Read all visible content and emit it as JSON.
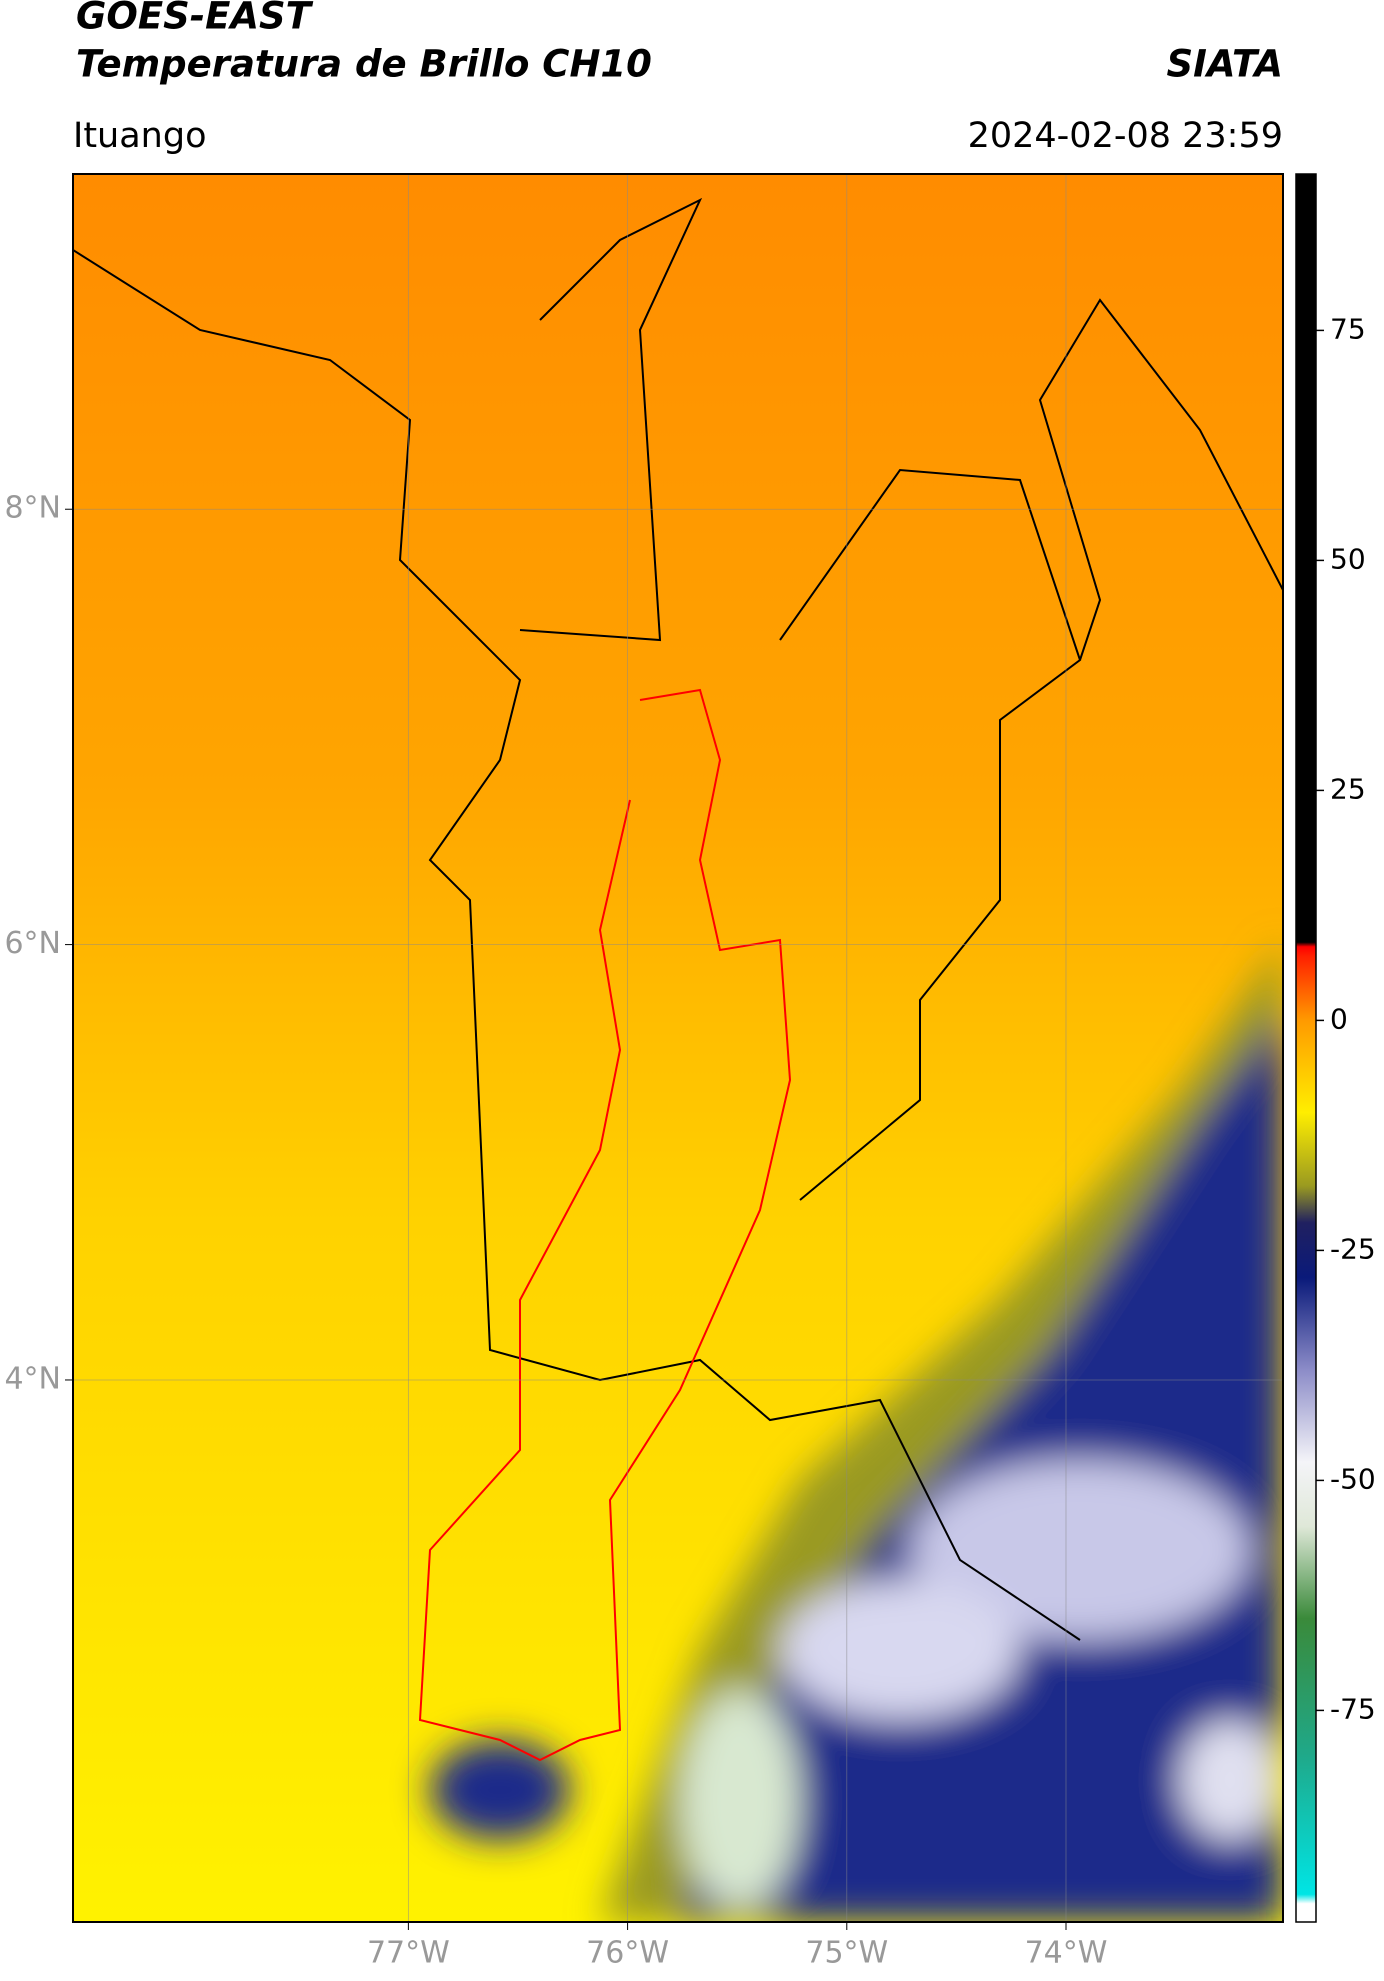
{
  "header": {
    "title": "GOES-EAST",
    "subtitle": "Temperatura de Brillo CH10",
    "credit": "SIATA",
    "location": "Ituango",
    "datetime": "2024-02-08 23:59"
  },
  "map": {
    "lonlim": [
      -78.53,
      -73.01
    ],
    "latlim": [
      1.51,
      9.54
    ],
    "grid": true,
    "lonticks": [
      {
        "value": -77,
        "label": "77°W"
      },
      {
        "value": -76,
        "label": "76°W"
      },
      {
        "value": -75,
        "label": "75°W"
      },
      {
        "value": -74,
        "label": "74°W"
      }
    ],
    "latticks": [
      {
        "value": 8,
        "label": "8°N"
      },
      {
        "value": 6,
        "label": "6°N"
      },
      {
        "value": 4,
        "label": "4°N"
      }
    ]
  },
  "colorbar": {
    "lim": [
      -98,
      92
    ],
    "ticks": [
      -75,
      -50,
      -25,
      0,
      25,
      50,
      75
    ],
    "stops": [
      {
        "value": -98,
        "color": "#ffffff"
      },
      {
        "value": -96,
        "color": "#ffffff"
      },
      {
        "value": -95,
        "color": "#00e5e5"
      },
      {
        "value": -80,
        "color": "#1fa98a"
      },
      {
        "value": -65,
        "color": "#3a8a3a"
      },
      {
        "value": -55,
        "color": "#dfe8d8"
      },
      {
        "value": -48,
        "color": "#f4f4f8"
      },
      {
        "value": -38,
        "color": "#8c8cc8"
      },
      {
        "value": -28,
        "color": "#0a1a7a"
      },
      {
        "value": -22,
        "color": "#202060"
      },
      {
        "value": -18,
        "color": "#9a9a20"
      },
      {
        "value": -10,
        "color": "#ffee00"
      },
      {
        "value": 0,
        "color": "#ff9a00"
      },
      {
        "value": 7,
        "color": "#ff2000"
      },
      {
        "value": 8,
        "color": "#ff0000"
      },
      {
        "value": 8.5,
        "color": "#000000"
      },
      {
        "value": 92,
        "color": "#000000"
      }
    ]
  }
}
